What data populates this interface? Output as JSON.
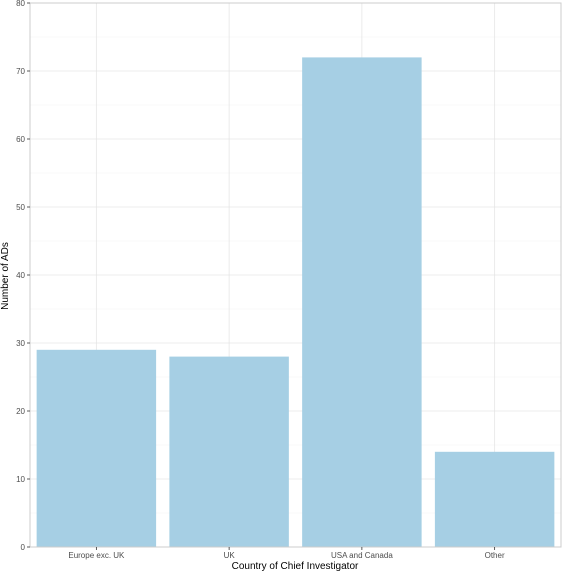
{
  "chart_data": {
    "type": "bar",
    "title": "",
    "xlabel": "Country of Chief Investigator",
    "ylabel": "Number of ADs",
    "categories": [
      "Europe exc. UK",
      "UK",
      "USA and Canada",
      "Other"
    ],
    "values": [
      29,
      28,
      72,
      14
    ],
    "ylim": [
      0,
      80
    ],
    "yticks": [
      0,
      10,
      20,
      30,
      40,
      50,
      60,
      70,
      80
    ],
    "grid": true,
    "bar_color": "#a6cfe4",
    "grid_color": "#e6e6e6",
    "panel_border_color": "#cccccc"
  }
}
